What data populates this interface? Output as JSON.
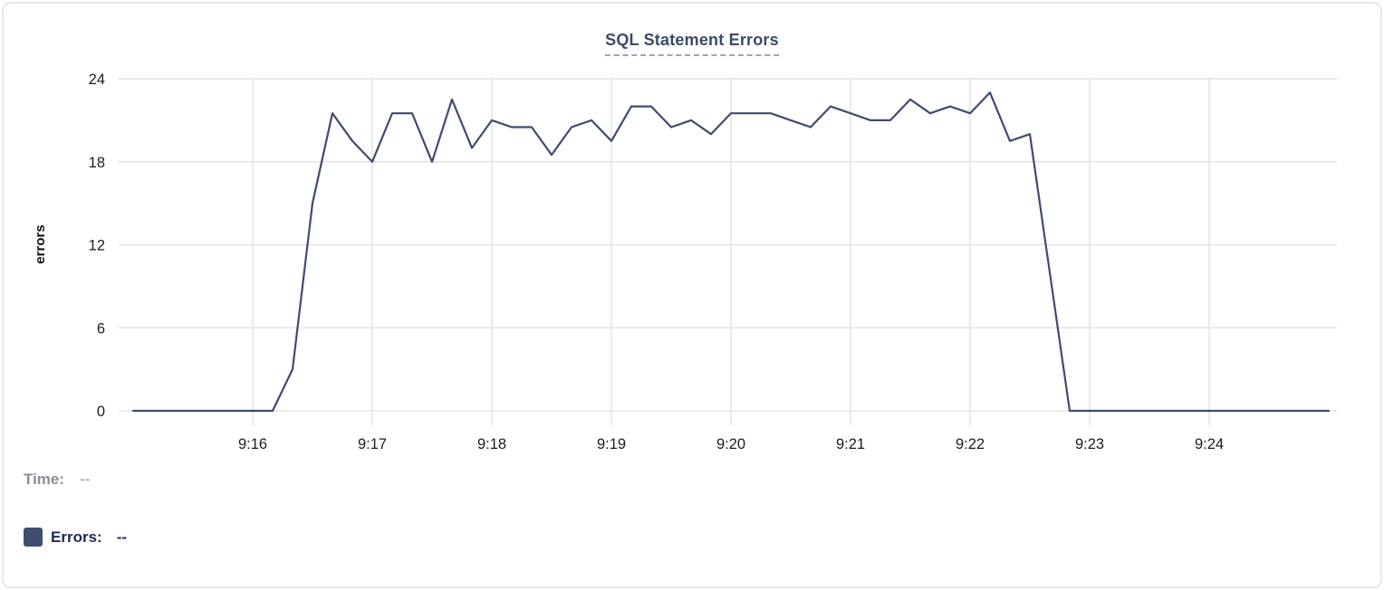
{
  "header": {
    "title": "SQL Statement Errors"
  },
  "tooltip": {
    "time_label": "Time:",
    "time_value": "--",
    "errors_label": "Errors:",
    "errors_value": "--",
    "swatch_color": "#3f4e6e"
  },
  "colors": {
    "line": "#3e4c6c",
    "grid": "#e3e3e3",
    "tick_text": "#1c1c1e",
    "title": "#3c4a67",
    "title_underline": "#99a5c0",
    "time_text": "#8a8f97",
    "errors_text": "#1d2a52",
    "card_border": "#e5e7ea"
  },
  "chart_data": {
    "type": "line",
    "title": "SQL Statement Errors",
    "xlabel": "",
    "ylabel": "errors",
    "x_ticks": [
      "9:16",
      "9:17",
      "9:18",
      "9:19",
      "9:20",
      "9:21",
      "9:22",
      "9:23",
      "9:24"
    ],
    "y_ticks": [
      0,
      6,
      12,
      18,
      24
    ],
    "ylim": [
      0,
      24
    ],
    "x_range": [
      "9:15:00",
      "9:25:00"
    ],
    "grid": true,
    "legend_position": "bottom-left",
    "series": [
      {
        "name": "Errors",
        "color": "#3e4c6c",
        "times": [
          "9:15:00",
          "9:15:10",
          "9:15:20",
          "9:15:30",
          "9:15:40",
          "9:15:50",
          "9:16:00",
          "9:16:10",
          "9:16:20",
          "9:16:30",
          "9:16:40",
          "9:16:50",
          "9:17:00",
          "9:17:10",
          "9:17:20",
          "9:17:30",
          "9:17:40",
          "9:17:50",
          "9:18:00",
          "9:18:10",
          "9:18:20",
          "9:18:30",
          "9:18:40",
          "9:18:50",
          "9:19:00",
          "9:19:10",
          "9:19:20",
          "9:19:30",
          "9:19:40",
          "9:19:50",
          "9:20:00",
          "9:20:10",
          "9:20:20",
          "9:20:30",
          "9:20:40",
          "9:20:50",
          "9:21:00",
          "9:21:10",
          "9:21:20",
          "9:21:30",
          "9:21:40",
          "9:21:50",
          "9:22:00",
          "9:22:10",
          "9:22:20",
          "9:22:30",
          "9:22:40",
          "9:22:50",
          "9:23:00",
          "9:23:10",
          "9:23:20",
          "9:23:30",
          "9:23:40",
          "9:23:50",
          "9:24:00",
          "9:24:10",
          "9:24:20",
          "9:24:30",
          "9:24:40",
          "9:24:50",
          "9:25:00"
        ],
        "values": [
          0,
          0,
          0,
          0,
          0,
          0,
          0,
          0,
          3,
          15,
          21.5,
          19.5,
          18,
          21.5,
          21.5,
          18,
          22.5,
          19,
          21,
          20.5,
          20.5,
          18.5,
          20.5,
          21,
          19.5,
          22,
          22,
          20.5,
          21,
          20,
          21.5,
          21.5,
          21.5,
          21,
          20.5,
          22,
          21.5,
          21,
          21,
          22.5,
          21.5,
          22,
          21.5,
          23,
          19.5,
          20,
          10,
          0,
          0,
          0,
          0,
          0,
          0,
          0,
          0,
          0,
          0,
          0,
          0,
          0,
          0
        ]
      }
    ]
  }
}
